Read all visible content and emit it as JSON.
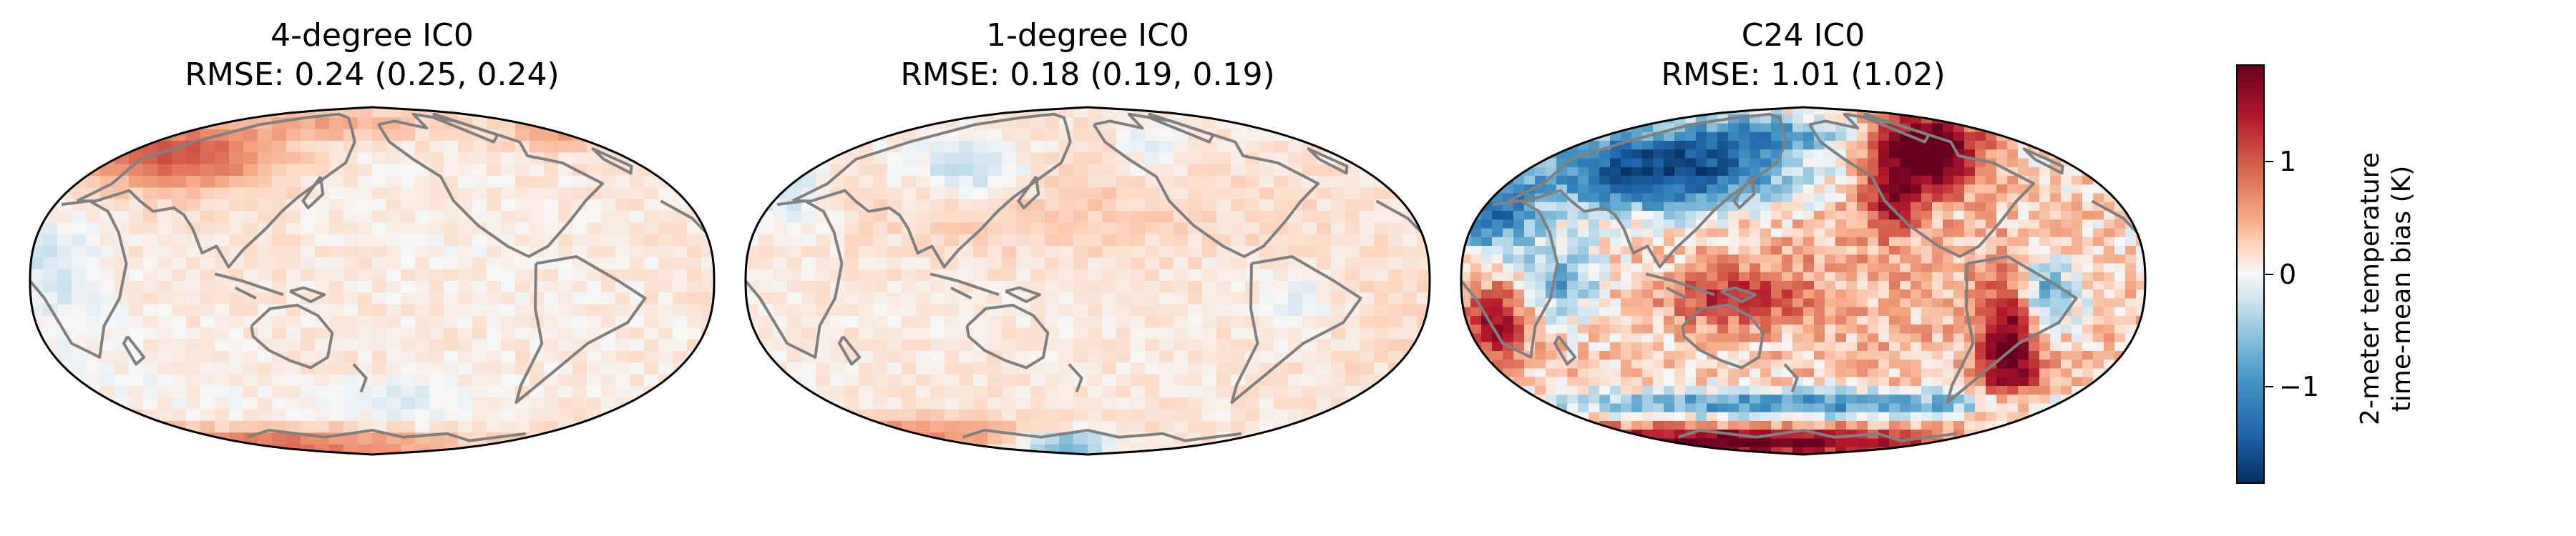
{
  "figure": {
    "panels": [
      {
        "title": "4-degree IC0",
        "subtitle": "RMSE: 0.24 (0.25, 0.24)",
        "pattern": "mild"
      },
      {
        "title": "1-degree IC0",
        "subtitle": "RMSE: 0.18 (0.19, 0.19)",
        "pattern": "weak"
      },
      {
        "title": "C24 IC0",
        "subtitle": "RMSE: 1.01 (1.02)",
        "pattern": "strong"
      }
    ],
    "colorbar": {
      "label_line1": "2-meter temperature",
      "label_line2": "time-mean bias (K)",
      "ticks": [
        {
          "value": 1,
          "text": "1"
        },
        {
          "value": 0,
          "text": "0"
        },
        {
          "value": -1,
          "text": "−1"
        }
      ],
      "range": [
        -1.85,
        1.85
      ],
      "cmap": "RdBu_r"
    },
    "colors": {
      "coast": "#808080",
      "outline": "#000000"
    }
  }
}
